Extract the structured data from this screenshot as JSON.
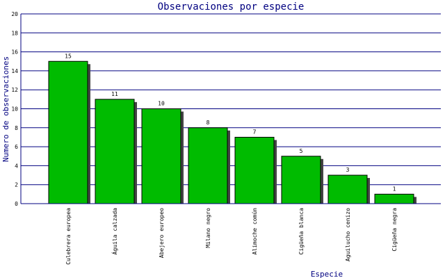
{
  "chart_data": {
    "type": "bar",
    "title": "Observaciones por especie",
    "xlabel": "Especie",
    "ylabel": "Numero de observaciones",
    "categories": [
      "Culebrera europea",
      "Águila calzada",
      "Abejero europeo",
      "Milano negro",
      "Alimoche común",
      "Cigüeña blanca",
      "Aguilucho cenizo",
      "Cigüeña negra"
    ],
    "values": [
      15,
      11,
      10,
      8,
      7,
      5,
      3,
      1
    ],
    "ylim": [
      0,
      20
    ],
    "yticks": [
      0,
      2,
      4,
      6,
      8,
      10,
      12,
      14,
      16,
      18,
      20
    ],
    "grid": true,
    "legend": "none"
  },
  "colors": {
    "bar": "#00bb00",
    "bar_outline": "#000000",
    "bar_shadow": "#444444",
    "grid": "#000080",
    "axis": "#000080",
    "title": "#000080",
    "text": "#000000"
  }
}
